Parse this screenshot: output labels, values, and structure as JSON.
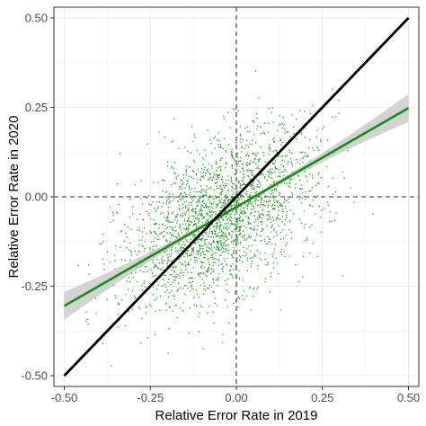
{
  "chart_data": {
    "type": "scatter",
    "xlabel": "Relative Error Rate in 2019",
    "ylabel": "Relative Error Rate in 2020",
    "xlim": [
      -0.53,
      0.53
    ],
    "ylim": [
      -0.53,
      0.53
    ],
    "x_ticks": [
      -0.5,
      -0.25,
      0,
      0.25,
      0.5
    ],
    "y_ticks": [
      -0.5,
      -0.25,
      0,
      0.25,
      0.5
    ],
    "x_tick_labels": [
      "-0.50",
      "-0.25",
      "0.00",
      "0.25",
      "0.50"
    ],
    "y_tick_labels": [
      "-0.50",
      "-0.25",
      "0.00",
      "0.25",
      "0.50"
    ],
    "grid": true,
    "reference_lines": [
      {
        "kind": "vertical",
        "x": 0,
        "style": "dashed"
      },
      {
        "kind": "horizontal",
        "y": 0,
        "style": "dashed"
      }
    ],
    "identity_line": {
      "x": [
        -0.5,
        0.5
      ],
      "y": [
        -0.5,
        0.5
      ],
      "color": "#000000"
    },
    "fit_line": {
      "x": [
        -0.5,
        0.5
      ],
      "y": [
        -0.305,
        0.248
      ],
      "color": "#1a8c1a",
      "band_color": "#c8c8c8"
    },
    "points": {
      "color": "#2e9a2e",
      "count": 2400,
      "center": [
        -0.05,
        -0.06
      ],
      "sd": [
        0.14,
        0.12
      ],
      "correlation": 0.5
    },
    "colors": {
      "panel_bg": "#ffffff",
      "grid": "#ebebeb",
      "points": "#2e9a2e"
    }
  }
}
